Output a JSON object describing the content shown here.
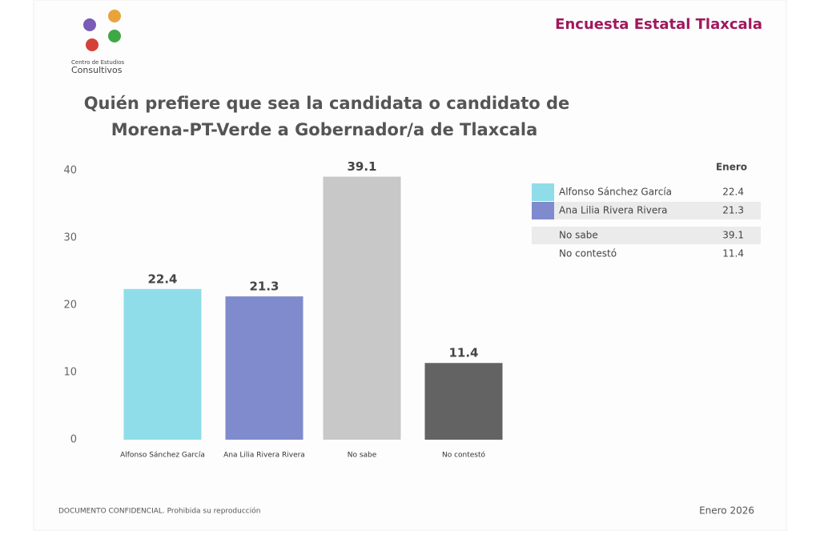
{
  "logo": {
    "line1": "Centro de Estudios",
    "line2": "Consultivos"
  },
  "header": "Encuesta Estatal Tlaxcala",
  "chart_data": {
    "type": "bar",
    "title": [
      "Quién prefiere que sea la candidata o candidato de",
      "Morena-PT-Verde a Gobernador/a de Tlaxcala"
    ],
    "categories": [
      "Alfonso Sánchez García",
      "Ana Lilia Rivera Rivera",
      "No sabe",
      "No contestó"
    ],
    "values": [
      22.4,
      21.3,
      39.1,
      11.4
    ],
    "colors": [
      "#8fdde8",
      "#7f8bcc",
      "#c8c8c8",
      "#636363"
    ],
    "ylim": [
      0,
      40
    ],
    "yticks": [
      0,
      10,
      20,
      30,
      40
    ],
    "grid": false,
    "table_header": "Enero"
  },
  "footer": {
    "left": "DOCUMENTO CONFIDENCIAL. Prohibida su reproducción",
    "right": "Enero 2026"
  }
}
